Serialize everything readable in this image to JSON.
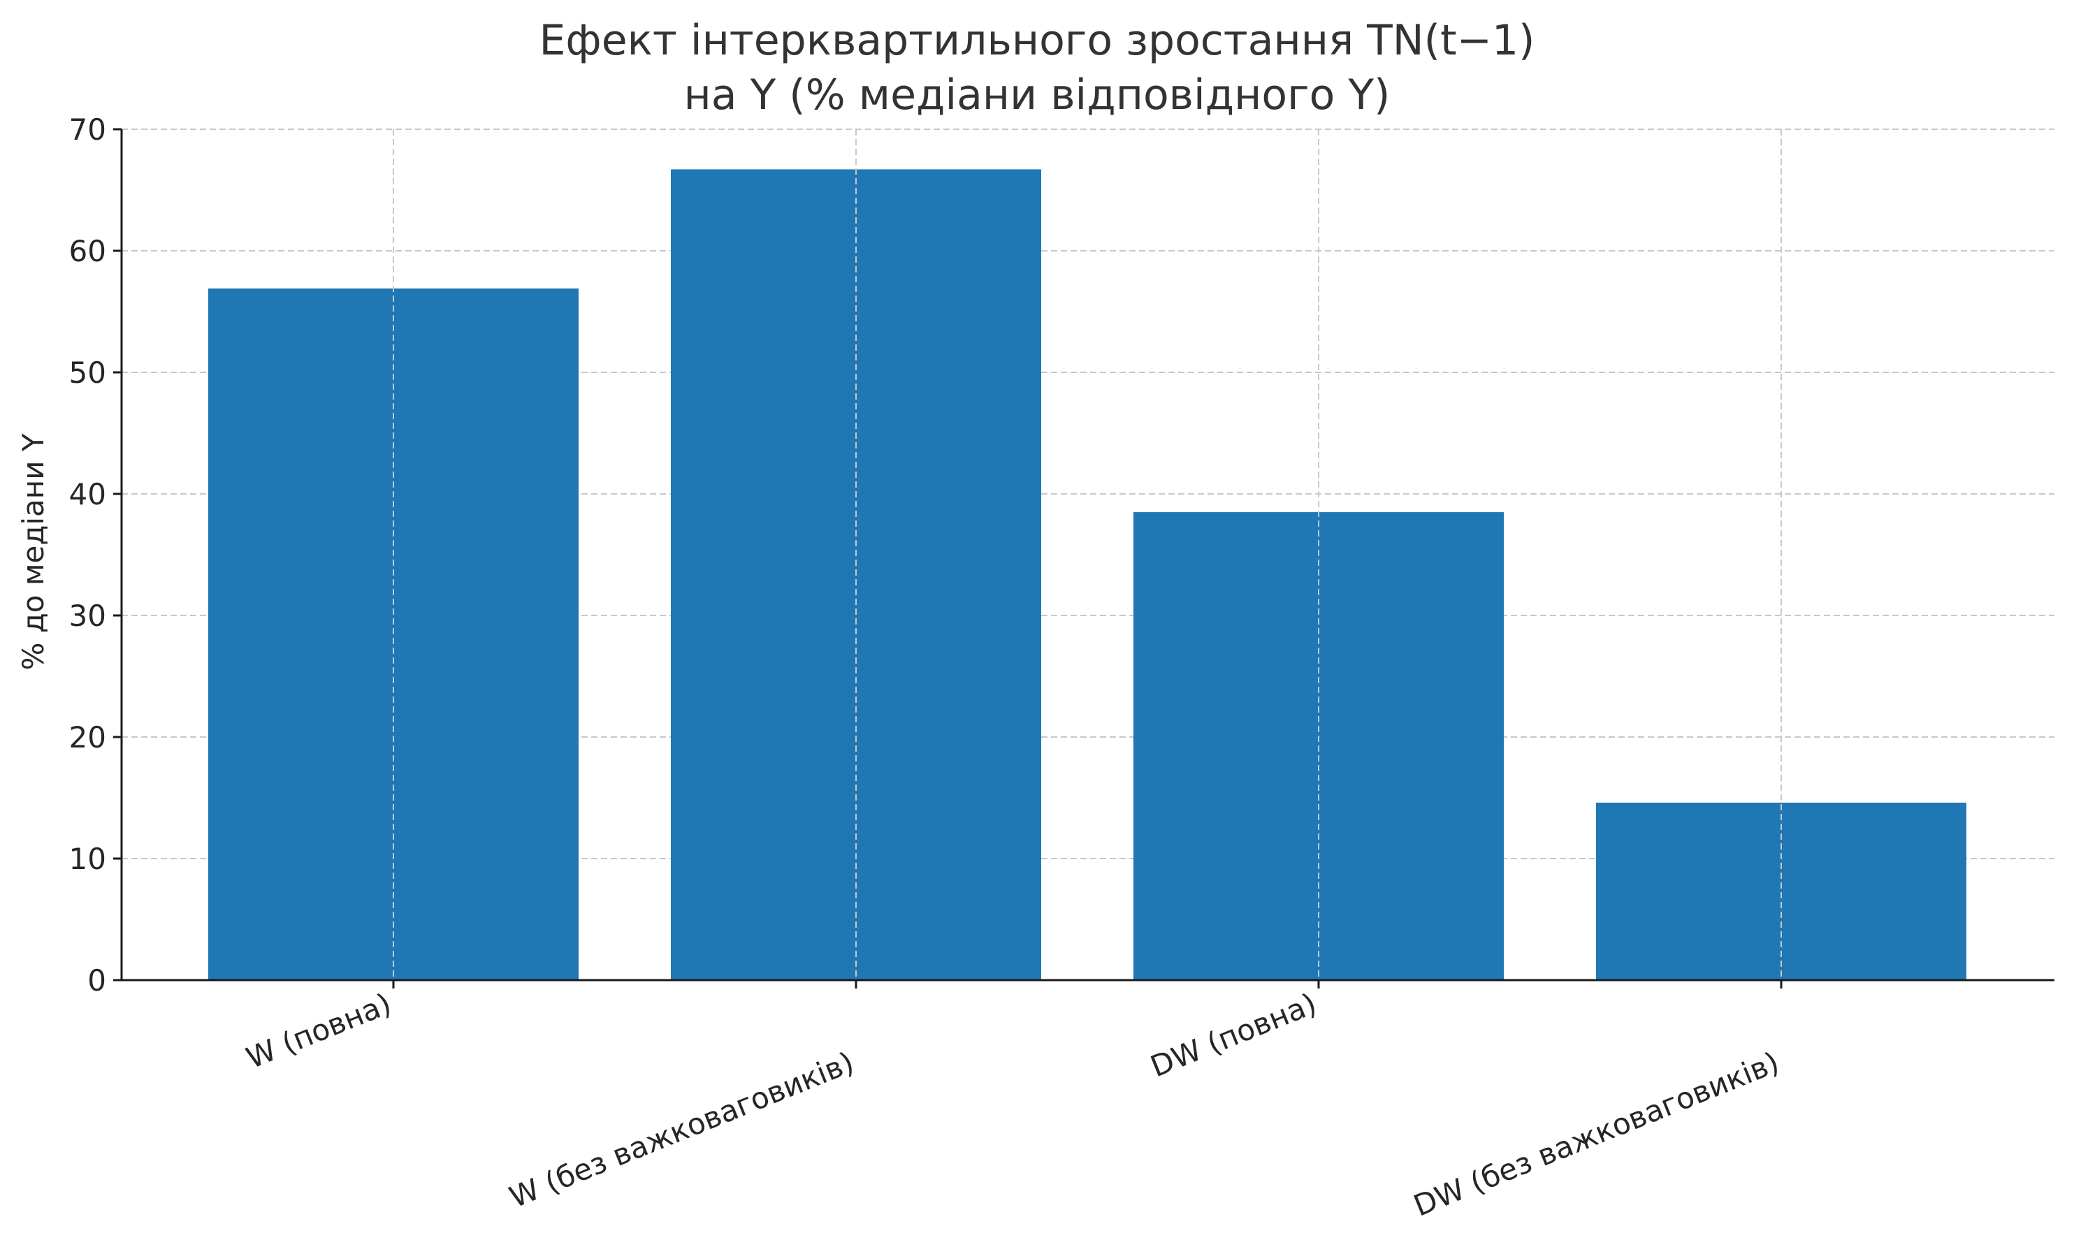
{
  "chart_data": {
    "type": "bar",
    "title_lines": [
      "Ефект інтерквартильного зростання TN(t−1)",
      "на Y (% медіани відповідного Y)"
    ],
    "xlabel": "",
    "ylabel": "% до медіани Y",
    "categories": [
      "W (повна)",
      "W (без важковаговиків)",
      "DW (повна)",
      "DW (без важковаговиків)"
    ],
    "values": [
      56.9,
      66.7,
      38.5,
      14.6
    ],
    "ylim": [
      0,
      70
    ],
    "yticks": [
      0,
      10,
      20,
      30,
      40,
      50,
      60,
      70
    ],
    "grid": true,
    "bar_color": "#1f77b4"
  }
}
